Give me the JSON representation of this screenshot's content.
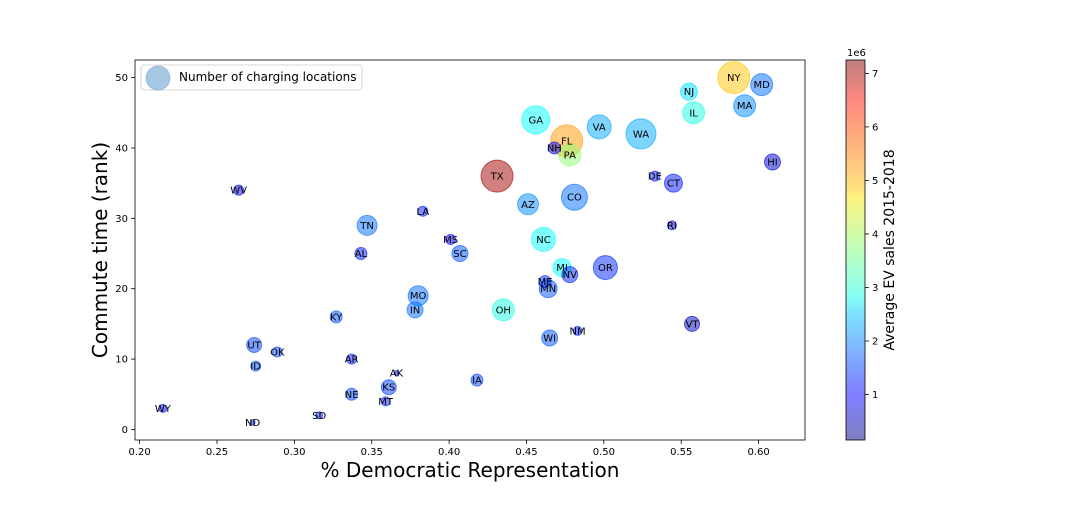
{
  "chart_data": {
    "type": "scatter",
    "title": "",
    "xlabel": "% Democratic Representation",
    "ylabel": "Commute time (rank)",
    "xlim": [
      0.197,
      0.63
    ],
    "ylim": [
      -1.5,
      52.5
    ],
    "xticks": [
      0.2,
      0.25,
      0.3,
      0.35,
      0.4,
      0.45,
      0.5,
      0.55,
      0.6
    ],
    "xtick_labels": [
      "0.20",
      "0.25",
      "0.30",
      "0.35",
      "0.40",
      "0.45",
      "0.50",
      "0.55",
      "0.60"
    ],
    "yticks": [
      0,
      10,
      20,
      30,
      40,
      50
    ],
    "ytick_labels": [
      "0",
      "10",
      "20",
      "30",
      "40",
      "50"
    ],
    "grid": false,
    "legend": {
      "placement": "top-left",
      "label": "Number of charging locations",
      "color": "#7fb0d8"
    },
    "colorbar": {
      "label": "Average EV sales 2015-2018",
      "scale_note": "1e6",
      "range": [
        0.15,
        7.25
      ],
      "ticks": [
        1,
        2,
        3,
        4,
        5,
        6,
        7
      ],
      "tick_labels": [
        "1",
        "2",
        "3",
        "4",
        "5",
        "6",
        "7"
      ],
      "colormap": "jet",
      "alpha": 0.5
    },
    "points": [
      {
        "label": "NY",
        "x": 0.584,
        "y": 50,
        "size": 32,
        "color_value": 5.0
      },
      {
        "label": "MD",
        "x": 0.602,
        "y": 49,
        "size": 22,
        "color_value": 1.8
      },
      {
        "label": "NJ",
        "x": 0.555,
        "y": 48,
        "size": 17,
        "color_value": 2.6
      },
      {
        "label": "MA",
        "x": 0.591,
        "y": 46,
        "size": 22,
        "color_value": 2.0
      },
      {
        "label": "IL",
        "x": 0.558,
        "y": 45,
        "size": 22,
        "color_value": 3.0
      },
      {
        "label": "GA",
        "x": 0.456,
        "y": 44,
        "size": 28,
        "color_value": 2.8
      },
      {
        "label": "VA",
        "x": 0.497,
        "y": 43,
        "size": 24,
        "color_value": 2.2
      },
      {
        "label": "WA",
        "x": 0.524,
        "y": 42,
        "size": 30,
        "color_value": 2.2
      },
      {
        "label": "FL",
        "x": 0.476,
        "y": 41,
        "size": 32,
        "color_value": 5.3
      },
      {
        "label": "NH",
        "x": 0.468,
        "y": 40,
        "size": 12,
        "color_value": 1.0
      },
      {
        "label": "PA",
        "x": 0.478,
        "y": 39,
        "size": 22,
        "color_value": 3.8
      },
      {
        "label": "HI",
        "x": 0.609,
        "y": 38,
        "size": 16,
        "color_value": 0.8
      },
      {
        "label": "TX",
        "x": 0.431,
        "y": 36,
        "size": 32,
        "color_value": 7.0
      },
      {
        "label": "DE",
        "x": 0.533,
        "y": 36,
        "size": 10,
        "color_value": 1.2
      },
      {
        "label": "CT",
        "x": 0.545,
        "y": 35,
        "size": 18,
        "color_value": 1.2
      },
      {
        "label": "WV",
        "x": 0.264,
        "y": 34,
        "size": 10,
        "color_value": 1.0
      },
      {
        "label": "CO",
        "x": 0.481,
        "y": 33,
        "size": 26,
        "color_value": 1.8
      },
      {
        "label": "AZ",
        "x": 0.451,
        "y": 32,
        "size": 21,
        "color_value": 2.0
      },
      {
        "label": "LA",
        "x": 0.383,
        "y": 31,
        "size": 10,
        "color_value": 1.2
      },
      {
        "label": "TN",
        "x": 0.347,
        "y": 29,
        "size": 20,
        "color_value": 1.8
      },
      {
        "label": "RI",
        "x": 0.544,
        "y": 29,
        "size": 9,
        "color_value": 0.9
      },
      {
        "label": "MS",
        "x": 0.401,
        "y": 27,
        "size": 10,
        "color_value": 1.0
      },
      {
        "label": "NC",
        "x": 0.461,
        "y": 27,
        "size": 24,
        "color_value": 2.8
      },
      {
        "label": "AL",
        "x": 0.343,
        "y": 25,
        "size": 12,
        "color_value": 1.2
      },
      {
        "label": "SC",
        "x": 0.407,
        "y": 25,
        "size": 16,
        "color_value": 1.6
      },
      {
        "label": "OR",
        "x": 0.501,
        "y": 23,
        "size": 24,
        "color_value": 1.3
      },
      {
        "label": "MI",
        "x": 0.473,
        "y": 23,
        "size": 18,
        "color_value": 2.8
      },
      {
        "label": "NV",
        "x": 0.478,
        "y": 22,
        "size": 16,
        "color_value": 1.3
      },
      {
        "label": "ME",
        "x": 0.462,
        "y": 21,
        "size": 12,
        "color_value": 1.3
      },
      {
        "label": "MN",
        "x": 0.464,
        "y": 20,
        "size": 18,
        "color_value": 1.6
      },
      {
        "label": "MO",
        "x": 0.38,
        "y": 19,
        "size": 20,
        "color_value": 1.8
      },
      {
        "label": "IN",
        "x": 0.378,
        "y": 17,
        "size": 16,
        "color_value": 1.8
      },
      {
        "label": "OH",
        "x": 0.435,
        "y": 17,
        "size": 22,
        "color_value": 3.0
      },
      {
        "label": "KY",
        "x": 0.327,
        "y": 16,
        "size": 12,
        "color_value": 1.6
      },
      {
        "label": "VT",
        "x": 0.557,
        "y": 15,
        "size": 15,
        "color_value": 0.6
      },
      {
        "label": "NM",
        "x": 0.483,
        "y": 14,
        "size": 9,
        "color_value": 1.2
      },
      {
        "label": "WI",
        "x": 0.465,
        "y": 13,
        "size": 16,
        "color_value": 1.6
      },
      {
        "label": "UT",
        "x": 0.274,
        "y": 12,
        "size": 15,
        "color_value": 1.5
      },
      {
        "label": "OK",
        "x": 0.289,
        "y": 11,
        "size": 10,
        "color_value": 1.5
      },
      {
        "label": "AR",
        "x": 0.337,
        "y": 10,
        "size": 10,
        "color_value": 1.2
      },
      {
        "label": "ID",
        "x": 0.275,
        "y": 9,
        "size": 10,
        "color_value": 1.6
      },
      {
        "label": "AK",
        "x": 0.366,
        "y": 8,
        "size": 5,
        "color_value": 1.0
      },
      {
        "label": "IA",
        "x": 0.418,
        "y": 7,
        "size": 12,
        "color_value": 1.5
      },
      {
        "label": "KS",
        "x": 0.361,
        "y": 6,
        "size": 15,
        "color_value": 1.5
      },
      {
        "label": "NE",
        "x": 0.337,
        "y": 5,
        "size": 12,
        "color_value": 1.5
      },
      {
        "label": "MT",
        "x": 0.359,
        "y": 4,
        "size": 9,
        "color_value": 1.2
      },
      {
        "label": "WY",
        "x": 0.215,
        "y": 3,
        "size": 8,
        "color_value": 1.0
      },
      {
        "label": "SD",
        "x": 0.316,
        "y": 2,
        "size": 7,
        "color_value": 1.2
      },
      {
        "label": "ND",
        "x": 0.273,
        "y": 1,
        "size": 5,
        "color_value": 1.3
      }
    ]
  }
}
